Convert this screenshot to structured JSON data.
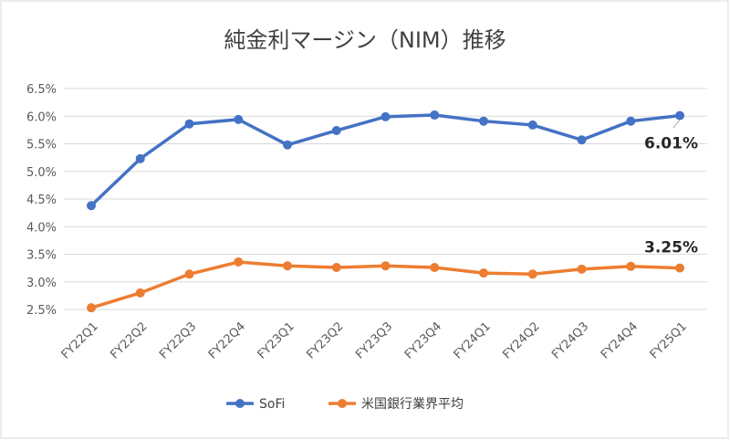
{
  "chart_data": {
    "type": "line",
    "title": "純金利マージン（NIM）推移",
    "categories": [
      "FY22Q1",
      "FY22Q2",
      "FY22Q3",
      "FY22Q4",
      "FY23Q1",
      "FY23Q2",
      "FY23Q3",
      "FY23Q4",
      "FY24Q1",
      "FY24Q2",
      "FY24Q3",
      "FY24Q4",
      "FY25Q1"
    ],
    "yticks": [
      "2.5%",
      "3.0%",
      "3.5%",
      "4.0%",
      "4.5%",
      "5.0%",
      "5.5%",
      "6.0%",
      "6.5%"
    ],
    "ylim": [
      2.5,
      6.5
    ],
    "grid": true,
    "legend_position": "bottom",
    "series": [
      {
        "name": "SoFi",
        "color": "#4472C4",
        "values": [
          4.38,
          5.23,
          5.86,
          5.94,
          5.48,
          5.74,
          5.99,
          6.02,
          5.91,
          5.84,
          5.57,
          5.91,
          6.01
        ],
        "end_label": "6.01%"
      },
      {
        "name": "米国銀行業界平均",
        "color": "#ED7D31",
        "values": [
          2.53,
          2.8,
          3.14,
          3.36,
          3.29,
          3.26,
          3.29,
          3.26,
          3.16,
          3.14,
          3.23,
          3.28,
          3.25
        ],
        "end_label": "3.25%"
      }
    ]
  }
}
